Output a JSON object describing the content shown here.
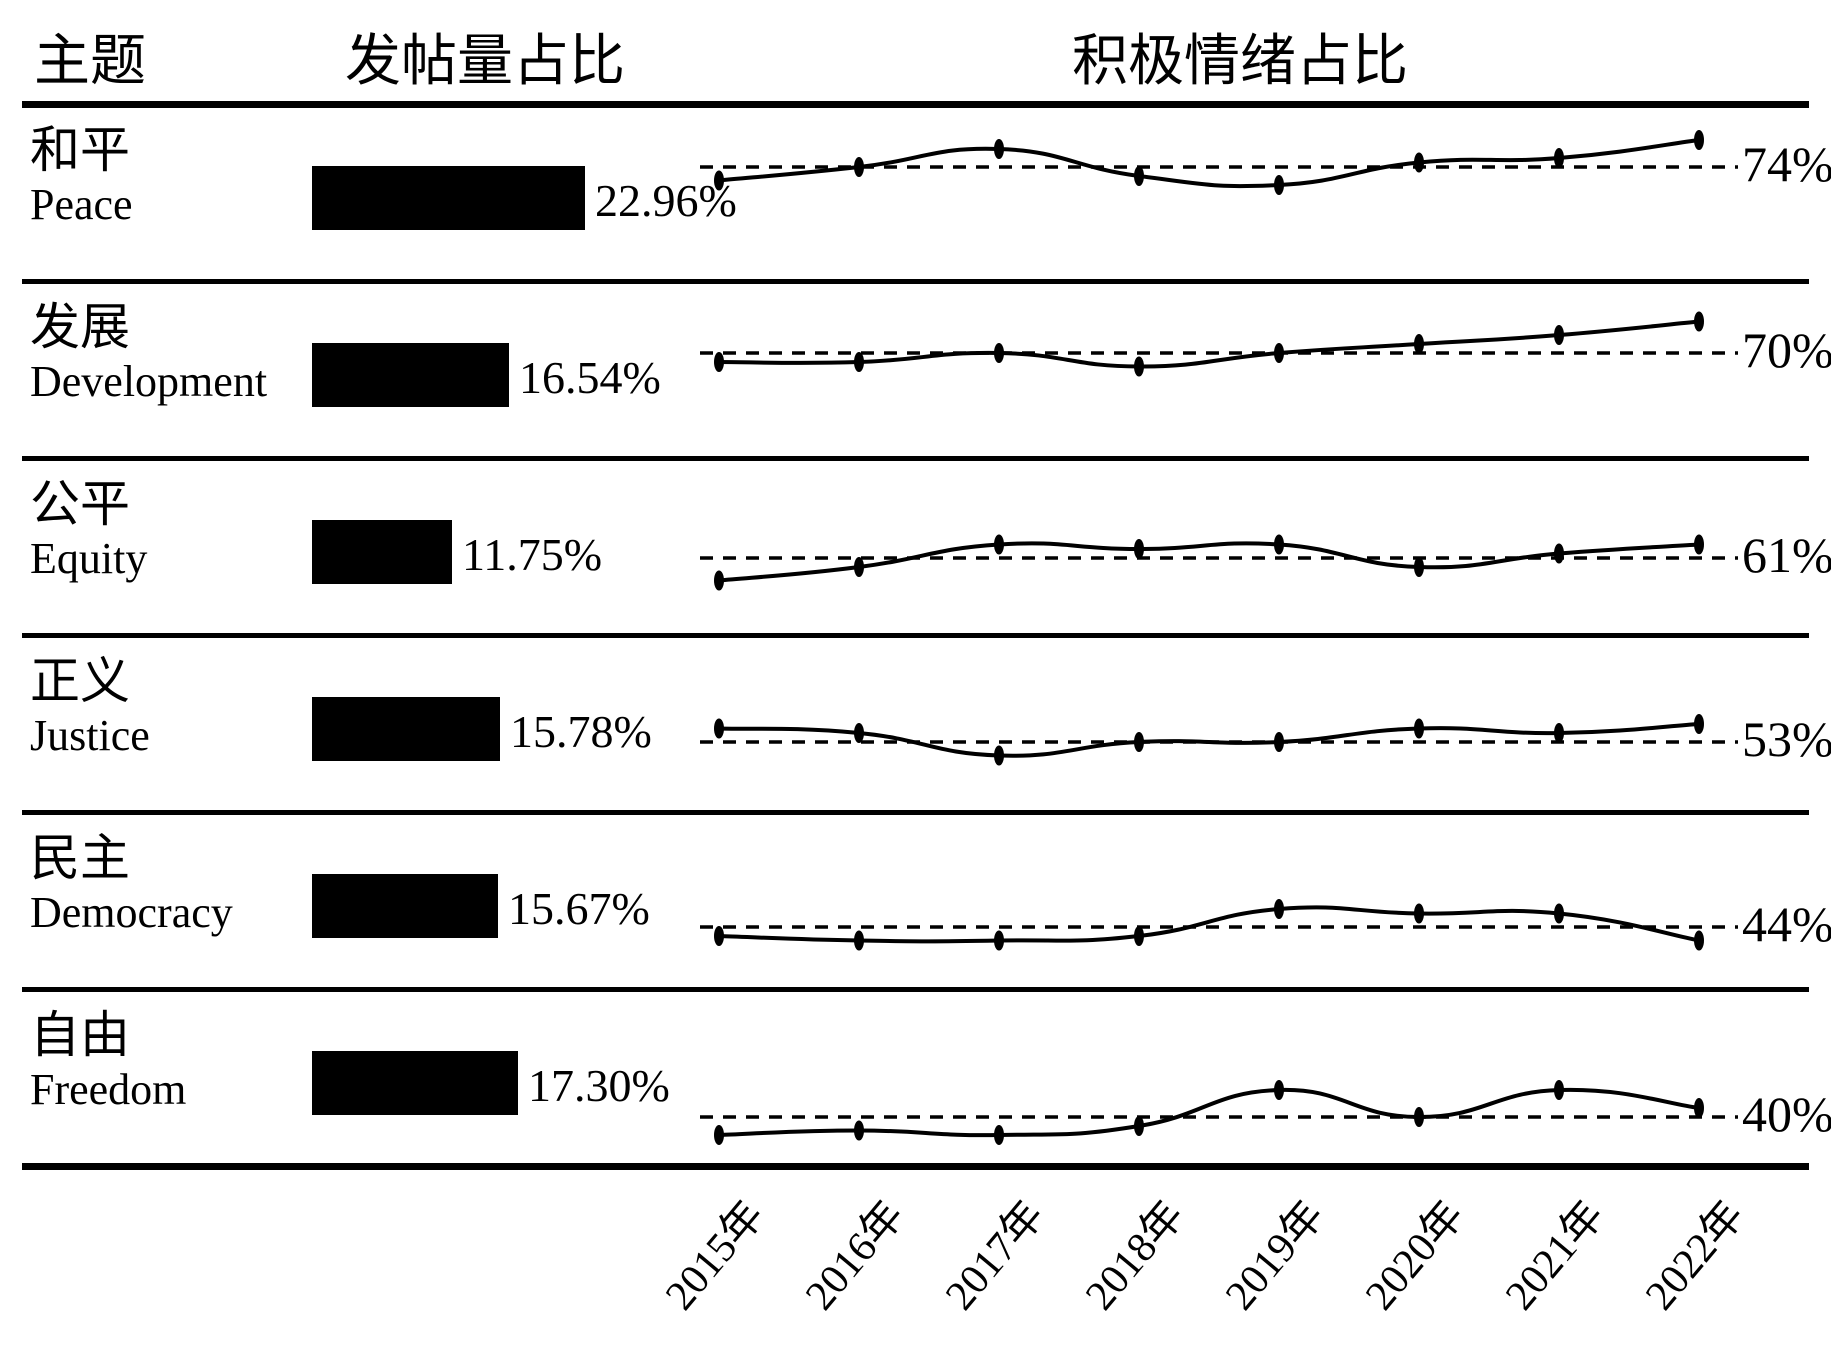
{
  "header": {
    "theme": "主题",
    "post_share": "发帖量占比",
    "sentiment": "积极情绪占比"
  },
  "colors": {
    "foreground": "#000000",
    "background": "#ffffff"
  },
  "chart_data": {
    "type": "table",
    "title": "",
    "columns": [
      "主题",
      "发帖量占比",
      "积极情绪占比"
    ],
    "years": [
      "2015年",
      "2016年",
      "2017年",
      "2018年",
      "2019年",
      "2020年",
      "2021年",
      "2022年"
    ],
    "x_values": [
      2015,
      2016,
      2017,
      2018,
      2019,
      2020,
      2021,
      2022
    ],
    "legend_position": "none",
    "grid": false,
    "rows": [
      {
        "theme_zh": "和平",
        "theme_en": "Peace",
        "post_share_pct": 22.96,
        "post_share_label": "22.96%",
        "sentiment_mean_pct": 74,
        "sentiment_mean_label": "74%",
        "sentiment_series_pct": [
          72.5,
          74,
          76,
          73,
          72,
          74.5,
          75,
          77
        ]
      },
      {
        "theme_zh": "发展",
        "theme_en": "Development",
        "post_share_pct": 16.54,
        "post_share_label": "16.54%",
        "sentiment_mean_pct": 70,
        "sentiment_mean_label": "70%",
        "sentiment_series_pct": [
          69,
          69,
          70,
          68.5,
          70,
          71,
          72,
          73.5
        ]
      },
      {
        "theme_zh": "公平",
        "theme_en": "Equity",
        "post_share_pct": 11.75,
        "post_share_label": "11.75%",
        "sentiment_mean_pct": 61,
        "sentiment_mean_label": "61%",
        "sentiment_series_pct": [
          58.5,
          60,
          62.5,
          62,
          62.5,
          60,
          61.5,
          62.5
        ]
      },
      {
        "theme_zh": "正义",
        "theme_en": "Justice",
        "post_share_pct": 15.78,
        "post_share_label": "15.78%",
        "sentiment_mean_pct": 53,
        "sentiment_mean_label": "53%",
        "sentiment_series_pct": [
          54.5,
          54,
          51.5,
          53,
          53,
          54.5,
          54,
          55
        ]
      },
      {
        "theme_zh": "民主",
        "theme_en": "Democracy",
        "post_share_pct": 15.67,
        "post_share_label": "15.67%",
        "sentiment_mean_pct": 44,
        "sentiment_mean_label": "44%",
        "sentiment_series_pct": [
          43,
          42.5,
          42.5,
          43,
          46,
          45.5,
          45.5,
          42.5
        ]
      },
      {
        "theme_zh": "自由",
        "theme_en": "Freedom",
        "post_share_pct": 17.3,
        "post_share_label": "17.30%",
        "sentiment_mean_pct": 40,
        "sentiment_mean_label": "40%",
        "sentiment_series_pct": [
          38,
          38.5,
          38,
          39,
          43,
          40,
          43,
          41
        ]
      }
    ]
  }
}
